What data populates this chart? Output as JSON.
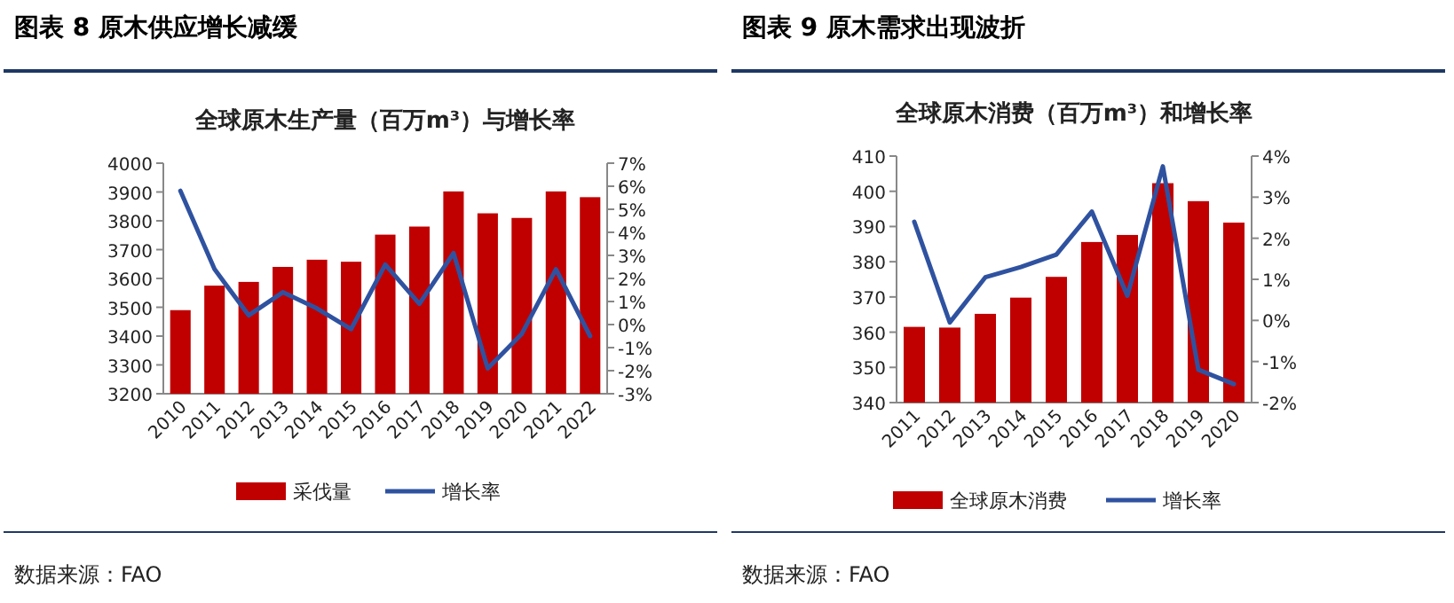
{
  "chart_data": [
    {
      "type": "bar",
      "title": "图表 8 原木供应增长减缓",
      "subtitle": "全球原木生产量（百万m³）与增长率",
      "annotations": [
        "数据来源：FAO"
      ],
      "categories": [
        "2010",
        "2011",
        "2012",
        "2013",
        "2014",
        "2015",
        "2016",
        "2017",
        "2018",
        "2019",
        "2020",
        "2021",
        "2022"
      ],
      "series": [
        {
          "name": "采伐量",
          "color": "#c00000",
          "values": [
            3490,
            3575,
            3588,
            3640,
            3665,
            3658,
            3752,
            3780,
            3902,
            3826,
            3810,
            3902,
            3882
          ]
        },
        {
          "name": "增长率",
          "type": "line",
          "axis": "y2",
          "color": "#2f52a0",
          "values": [
            5.8,
            2.4,
            0.4,
            1.4,
            0.7,
            -0.2,
            2.6,
            0.9,
            3.1,
            -1.9,
            -0.4,
            2.4,
            -0.5
          ]
        }
      ],
      "ylim": [
        3200,
        4000
      ],
      "yticks": [
        3200,
        3300,
        3400,
        3500,
        3600,
        3700,
        3800,
        3900,
        4000
      ],
      "y2lim": [
        -3,
        7
      ],
      "y2ticks": [
        {
          "value": -3,
          "label": "-3%"
        },
        {
          "value": -2,
          "label": "-2%"
        },
        {
          "value": -1,
          "label": "-1%"
        },
        {
          "value": 0,
          "label": "0%"
        },
        {
          "value": 1,
          "label": "1%"
        },
        {
          "value": 2,
          "label": "2%"
        },
        {
          "value": 3,
          "label": "3%"
        },
        {
          "value": 4,
          "label": "4%"
        },
        {
          "value": 5,
          "label": "5%"
        },
        {
          "value": 6,
          "label": "6%"
        },
        {
          "value": 7,
          "label": "7%"
        }
      ],
      "grid": false,
      "legend": "bottom",
      "marker": "none",
      "line_style": "solid"
    },
    {
      "type": "bar",
      "title": "图表 9 原木需求出现波折",
      "subtitle": "全球原木消费（百万m³）和增长率",
      "annotations": [
        "数据来源：FAO"
      ],
      "categories": [
        "2011",
        "2012",
        "2013",
        "2014",
        "2015",
        "2016",
        "2017",
        "2018",
        "2019",
        "2020"
      ],
      "series": [
        {
          "name": "全球原木消费",
          "color": "#c00000",
          "values": [
            361.5,
            361.3,
            365.2,
            369.8,
            375.7,
            385.6,
            387.6,
            402.3,
            397.2,
            391.1
          ]
        },
        {
          "name": "增长率",
          "type": "line",
          "axis": "y2",
          "color": "#2f52a0",
          "values": [
            2.4,
            -0.05,
            1.05,
            1.3,
            1.6,
            2.65,
            0.6,
            3.75,
            -1.2,
            -1.55
          ]
        }
      ],
      "ylim": [
        340,
        410
      ],
      "yticks": [
        340,
        350,
        360,
        370,
        380,
        390,
        400,
        410
      ],
      "y2lim": [
        -2,
        4
      ],
      "y2ticks": [
        {
          "value": -2,
          "label": "-2%"
        },
        {
          "value": -1,
          "label": "-1%"
        },
        {
          "value": 0,
          "label": "0%"
        },
        {
          "value": 1,
          "label": "1%"
        },
        {
          "value": 2,
          "label": "2%"
        },
        {
          "value": 3,
          "label": "3%"
        },
        {
          "value": 4,
          "label": "4%"
        }
      ],
      "grid": false,
      "legend": "bottom",
      "marker": "none",
      "line_style": "solid"
    }
  ]
}
